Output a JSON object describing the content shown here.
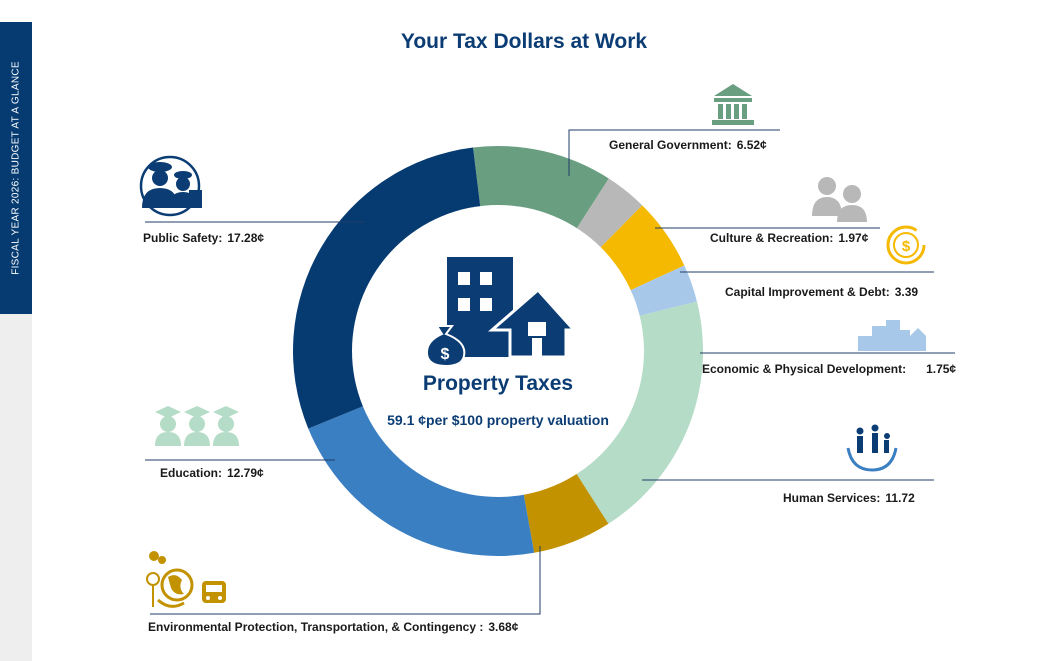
{
  "page": {
    "side_label": "FISCAL YEAR 2026: BUDGET AT A GLANCE",
    "title": "Your Tax Dollars at Work"
  },
  "center": {
    "title": "Property Taxes",
    "value": "59.1",
    "unit_text": "¢per $100 property valuation"
  },
  "labels": {
    "general_government": {
      "name": "General Government:",
      "value": "6.52¢"
    },
    "culture_recreation": {
      "name": "Culture & Recreation:",
      "value": "1.97¢"
    },
    "capital_improvement": {
      "name": "Capital Improvement & Debt:",
      "value": "3.39"
    },
    "economic_development": {
      "name": "Economic & Physical Development:",
      "value": "1.75¢"
    },
    "human_services": {
      "name": "Human Services:",
      "value": "11.72"
    },
    "environmental": {
      "name": "Environmental Protection, Transportation, & Contingency :",
      "value": "3.68¢"
    },
    "education": {
      "name": "Education:",
      "value": "12.79¢"
    },
    "public_safety": {
      "name": "Public Safety:",
      "value": "17.28¢"
    }
  },
  "icons": {
    "general_government": "government-building-icon",
    "culture_recreation": "people-icon",
    "capital_improvement": "dollar-coin-icon",
    "economic_development": "city-skyline-icon",
    "human_services": "family-hands-icon",
    "environmental": "earth-bus-icon",
    "education": "graduates-icon",
    "public_safety": "public-safety-officers-icon",
    "center": "house-building-money-bag-icon"
  },
  "chart_data": {
    "type": "pie",
    "variant": "donut",
    "unit": "¢ per $100 property valuation",
    "total": 59.1,
    "categories": [
      "General Government",
      "Culture & Recreation",
      "Capital Improvement & Debt",
      "Economic & Physical Development",
      "Human Services",
      "Environmental Protection, Transportation, & Contingency",
      "Education",
      "Public Safety"
    ],
    "values": [
      6.52,
      1.97,
      3.39,
      1.75,
      11.72,
      3.68,
      12.79,
      17.28
    ],
    "colors": [
      "#6a9e80",
      "#b8b8b8",
      "#f4b900",
      "#a8c8ea",
      "#b4dcc7",
      "#c29200",
      "#3b7fc3",
      "#063b72"
    ],
    "legend": "none"
  }
}
